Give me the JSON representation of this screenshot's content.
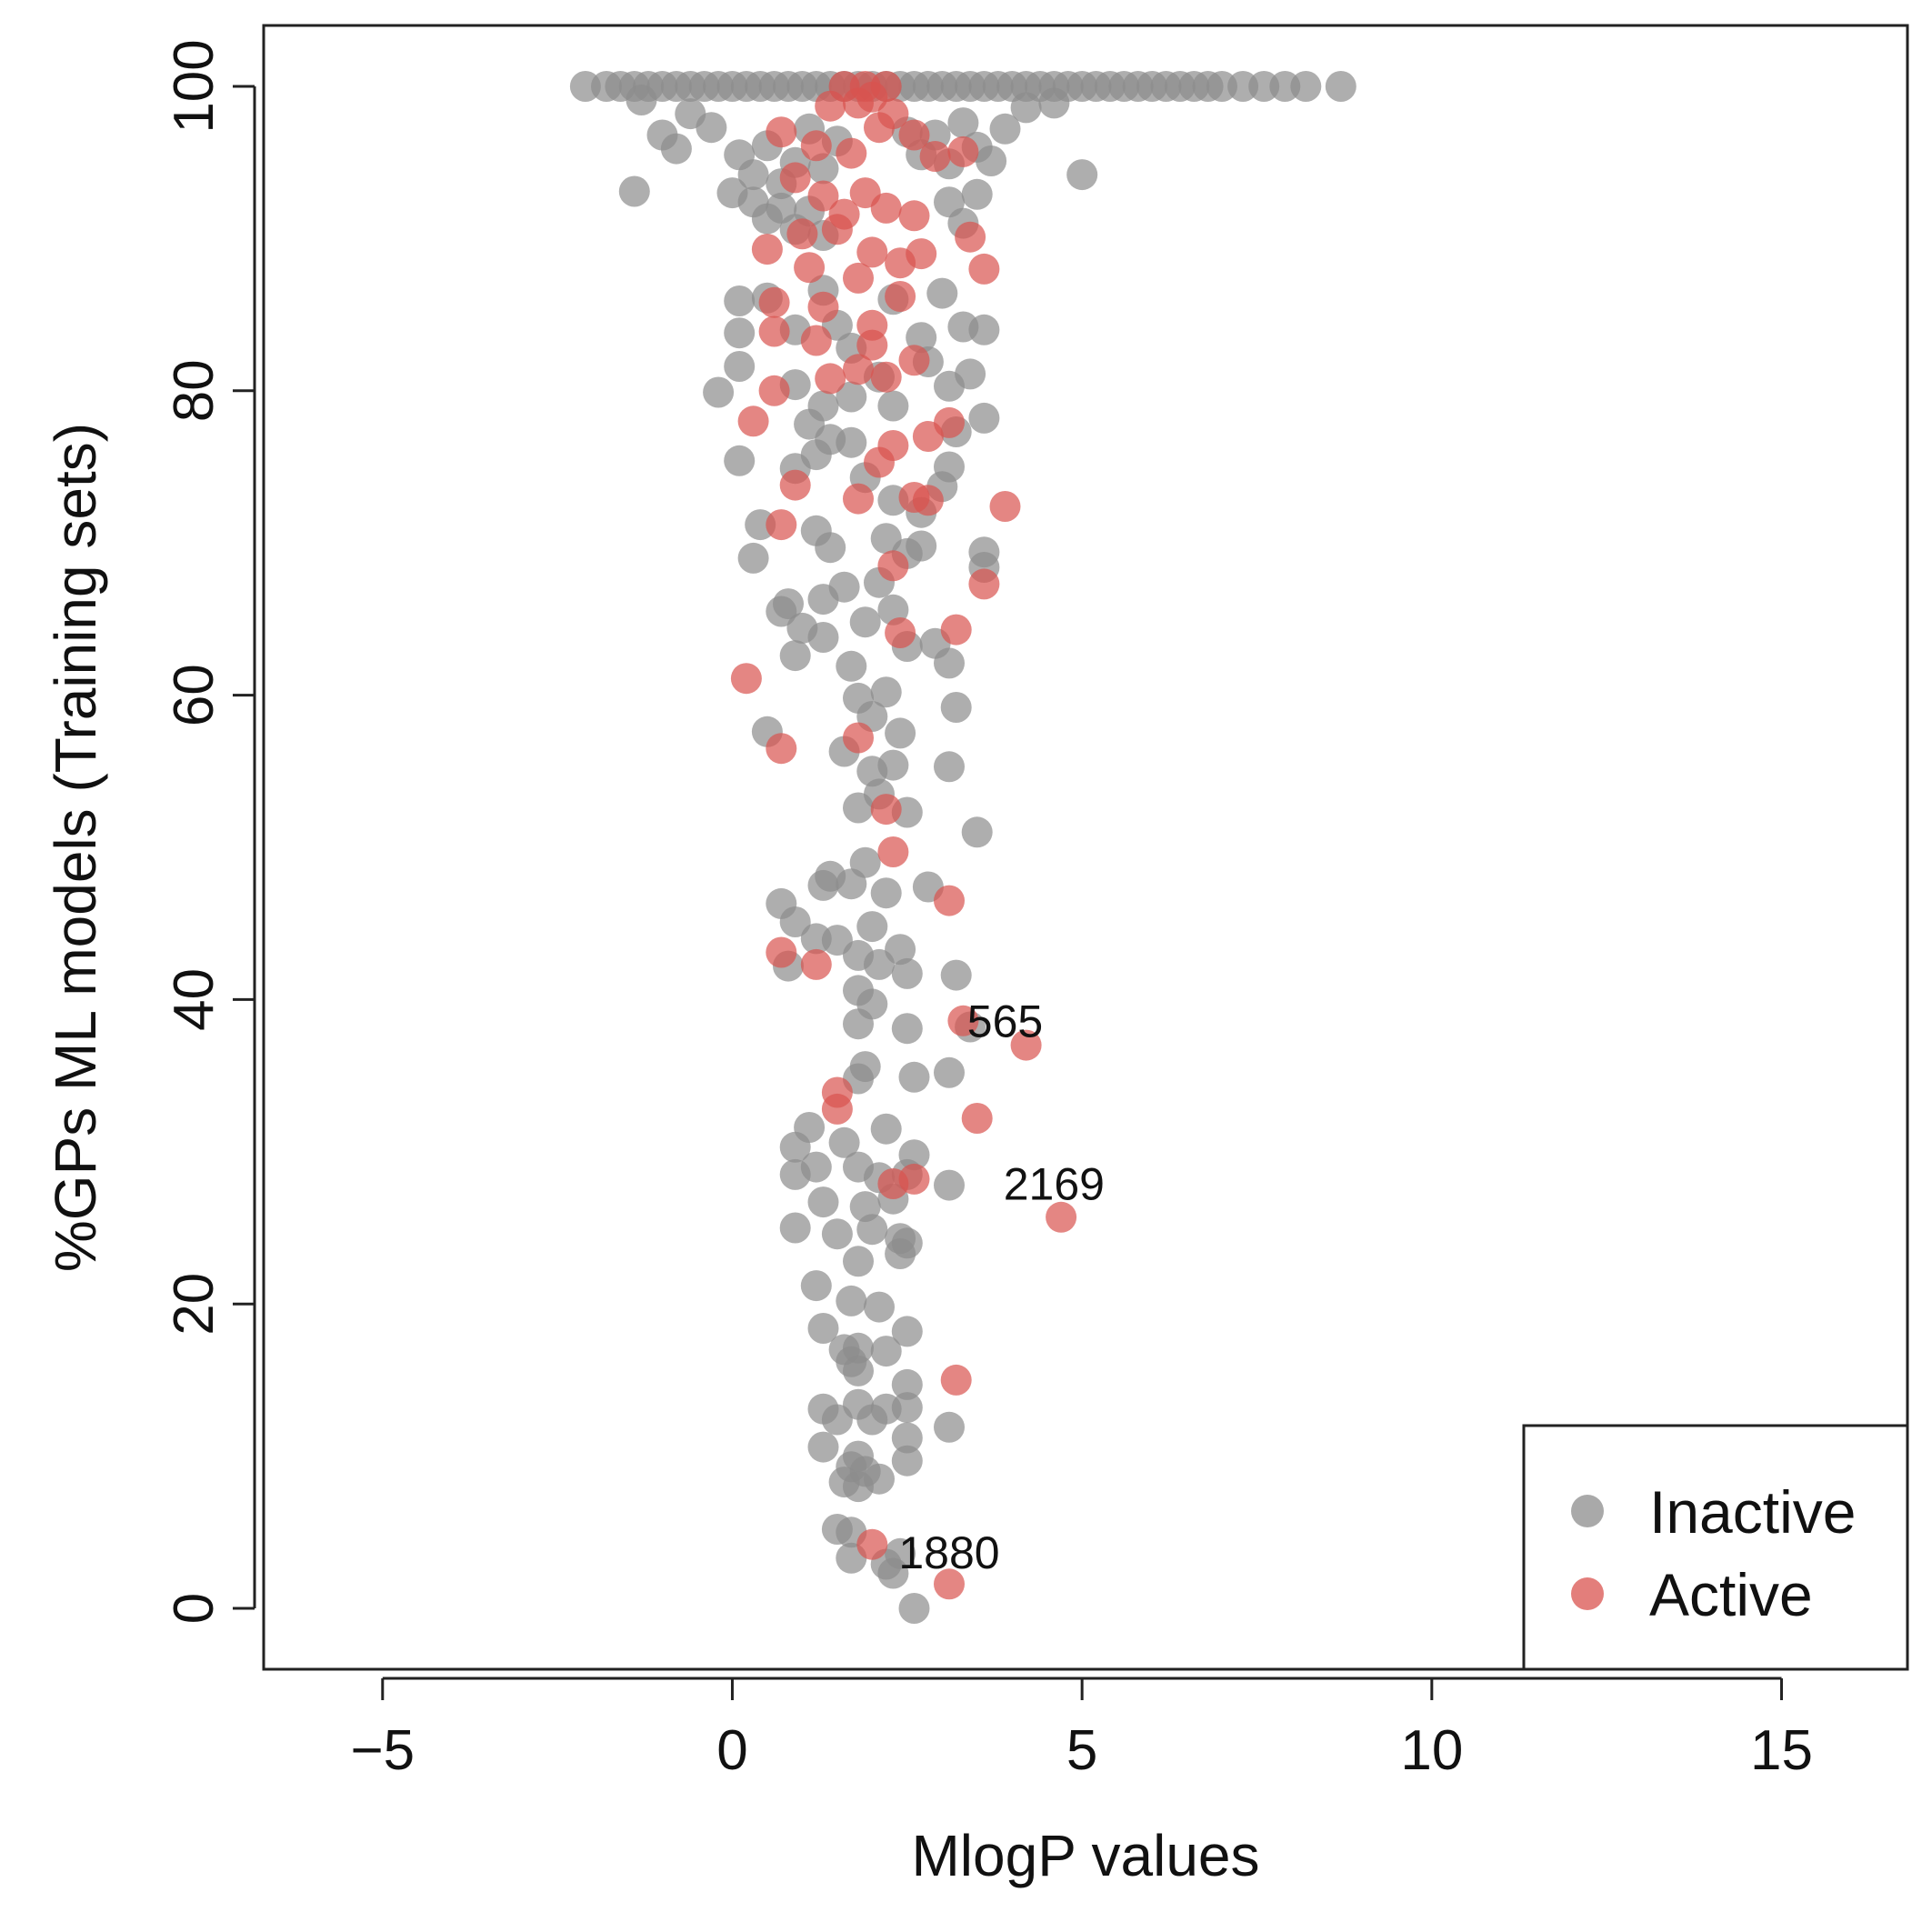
{
  "chart_data": {
    "type": "scatter",
    "title": "",
    "xlabel": "MlogP values",
    "ylabel": "%GPs ML models (Training sets)",
    "xlim": [
      -6.7,
      16.8
    ],
    "ylim": [
      -4,
      104
    ],
    "x_ticks": [
      -5,
      0,
      5,
      10,
      15
    ],
    "x_tick_labels": [
      "−5",
      "0",
      "5",
      "10",
      "15"
    ],
    "y_ticks": [
      0,
      20,
      40,
      60,
      80,
      100
    ],
    "y_tick_labels": [
      "0",
      "20",
      "40",
      "60",
      "80",
      "100"
    ],
    "grid": false,
    "legend_position": "bottom-right",
    "series": [
      {
        "name": "Inactive",
        "color": "#8c8c8c",
        "points": [
          [
            -2.1,
            100
          ],
          [
            -1.8,
            100
          ],
          [
            -1.6,
            100
          ],
          [
            -1.4,
            100
          ],
          [
            -1.2,
            100
          ],
          [
            -1.0,
            100
          ],
          [
            -0.8,
            100
          ],
          [
            -0.6,
            100
          ],
          [
            -0.4,
            100
          ],
          [
            -0.2,
            100
          ],
          [
            0.0,
            100
          ],
          [
            0.2,
            100
          ],
          [
            0.4,
            100
          ],
          [
            0.6,
            100
          ],
          [
            0.8,
            100
          ],
          [
            1.0,
            100
          ],
          [
            1.2,
            100
          ],
          [
            1.4,
            100
          ],
          [
            1.6,
            100
          ],
          [
            1.8,
            100
          ],
          [
            2.0,
            100
          ],
          [
            2.2,
            100
          ],
          [
            2.4,
            100
          ],
          [
            2.6,
            100
          ],
          [
            2.8,
            100
          ],
          [
            3.0,
            100
          ],
          [
            3.2,
            100
          ],
          [
            3.4,
            100
          ],
          [
            3.6,
            100
          ],
          [
            3.8,
            100
          ],
          [
            4.0,
            100
          ],
          [
            4.2,
            100
          ],
          [
            4.4,
            100
          ],
          [
            4.6,
            100
          ],
          [
            4.8,
            100
          ],
          [
            5.0,
            100
          ],
          [
            5.2,
            100
          ],
          [
            5.4,
            100
          ],
          [
            5.6,
            100
          ],
          [
            5.8,
            100
          ],
          [
            6.0,
            100
          ],
          [
            6.2,
            100
          ],
          [
            6.4,
            100
          ],
          [
            6.6,
            100
          ],
          [
            6.8,
            100
          ],
          [
            7.0,
            100
          ],
          [
            7.3,
            100
          ],
          [
            7.6,
            100
          ],
          [
            7.9,
            100
          ],
          [
            8.2,
            100
          ],
          [
            8.7,
            100
          ],
          [
            -1.3,
            99.1
          ],
          [
            -1.0,
            96.8
          ],
          [
            -0.8,
            95.9
          ],
          [
            -0.6,
            98.2
          ],
          [
            -0.3,
            97.3
          ],
          [
            0.1,
            95.5
          ],
          [
            0.3,
            94.2
          ],
          [
            0.5,
            96.1
          ],
          [
            0.7,
            93.6
          ],
          [
            0.9,
            95.0
          ],
          [
            1.1,
            97.2
          ],
          [
            1.3,
            94.6
          ],
          [
            1.5,
            96.4
          ],
          [
            2.5,
            97.0
          ],
          [
            2.7,
            95.5
          ],
          [
            2.9,
            96.8
          ],
          [
            3.1,
            94.9
          ],
          [
            3.3,
            97.6
          ],
          [
            3.5,
            96.0
          ],
          [
            3.7,
            95.1
          ],
          [
            3.9,
            97.2
          ],
          [
            4.2,
            98.6
          ],
          [
            4.6,
            98.9
          ],
          [
            -1.4,
            93.1
          ],
          [
            0.0,
            93.0
          ],
          [
            0.3,
            92.4
          ],
          [
            0.5,
            91.3
          ],
          [
            0.7,
            92.0
          ],
          [
            0.9,
            90.6
          ],
          [
            1.1,
            91.8
          ],
          [
            1.3,
            90.2
          ],
          [
            3.1,
            92.4
          ],
          [
            3.3,
            91.0
          ],
          [
            3.5,
            92.9
          ],
          [
            5.0,
            94.2
          ],
          [
            0.1,
            85.9
          ],
          [
            0.1,
            83.8
          ],
          [
            0.5,
            86.1
          ],
          [
            0.9,
            84.0
          ],
          [
            1.3,
            86.6
          ],
          [
            1.5,
            84.3
          ],
          [
            1.7,
            82.8
          ],
          [
            2.3,
            86.0
          ],
          [
            2.7,
            83.5
          ],
          [
            3.0,
            86.4
          ],
          [
            3.3,
            84.2
          ],
          [
            3.6,
            84.0
          ],
          [
            0.1,
            81.6
          ],
          [
            -0.2,
            79.9
          ],
          [
            0.9,
            80.4
          ],
          [
            1.3,
            79.0
          ],
          [
            1.1,
            77.8
          ],
          [
            1.7,
            79.6
          ],
          [
            2.1,
            80.9
          ],
          [
            2.3,
            79.0
          ],
          [
            2.8,
            81.9
          ],
          [
            3.1,
            80.3
          ],
          [
            3.4,
            81.1
          ],
          [
            3.6,
            78.2
          ],
          [
            0.1,
            75.4
          ],
          [
            0.9,
            74.9
          ],
          [
            1.2,
            75.8
          ],
          [
            1.4,
            76.8
          ],
          [
            1.7,
            76.6
          ],
          [
            1.9,
            74.3
          ],
          [
            2.3,
            72.8
          ],
          [
            2.7,
            72.0
          ],
          [
            3.0,
            73.7
          ],
          [
            3.1,
            75.0
          ],
          [
            3.2,
            77.3
          ],
          [
            0.4,
            71.2
          ],
          [
            0.3,
            69.0
          ],
          [
            1.2,
            70.8
          ],
          [
            1.4,
            69.7
          ],
          [
            2.2,
            70.3
          ],
          [
            2.5,
            69.3
          ],
          [
            2.7,
            69.8
          ],
          [
            3.6,
            69.4
          ],
          [
            3.6,
            68.4
          ],
          [
            0.8,
            66.0
          ],
          [
            0.7,
            65.5
          ],
          [
            1.0,
            64.4
          ],
          [
            1.3,
            66.3
          ],
          [
            1.6,
            67.1
          ],
          [
            1.9,
            64.8
          ],
          [
            2.1,
            67.4
          ],
          [
            2.3,
            65.6
          ],
          [
            2.5,
            63.2
          ],
          [
            2.9,
            63.4
          ],
          [
            3.1,
            62.1
          ],
          [
            0.5,
            57.6
          ],
          [
            0.9,
            62.6
          ],
          [
            1.3,
            63.8
          ],
          [
            1.7,
            61.9
          ],
          [
            1.8,
            59.8
          ],
          [
            2.0,
            58.6
          ],
          [
            2.2,
            60.2
          ],
          [
            2.4,
            57.5
          ],
          [
            2.0,
            55.0
          ],
          [
            2.3,
            55.4
          ],
          [
            1.6,
            56.3
          ],
          [
            3.1,
            55.3
          ],
          [
            3.2,
            59.2
          ],
          [
            1.8,
            52.6
          ],
          [
            2.1,
            53.5
          ],
          [
            2.5,
            52.3
          ],
          [
            3.5,
            51.0
          ],
          [
            1.4,
            48.1
          ],
          [
            1.3,
            47.5
          ],
          [
            1.9,
            49.0
          ],
          [
            1.7,
            47.6
          ],
          [
            2.2,
            47.0
          ],
          [
            2.8,
            47.4
          ],
          [
            0.7,
            46.3
          ],
          [
            0.9,
            45.1
          ],
          [
            1.2,
            44.0
          ],
          [
            1.5,
            43.9
          ],
          [
            1.8,
            42.9
          ],
          [
            2.0,
            44.8
          ],
          [
            2.1,
            42.3
          ],
          [
            2.4,
            43.3
          ],
          [
            0.8,
            42.2
          ],
          [
            1.8,
            40.6
          ],
          [
            2.0,
            39.7
          ],
          [
            2.5,
            41.7
          ],
          [
            3.2,
            41.6
          ],
          [
            1.8,
            38.4
          ],
          [
            2.5,
            38.1
          ],
          [
            3.4,
            38.2
          ],
          [
            1.9,
            35.6
          ],
          [
            1.8,
            34.8
          ],
          [
            2.6,
            34.9
          ],
          [
            3.1,
            35.2
          ],
          [
            1.1,
            31.6
          ],
          [
            0.9,
            30.3
          ],
          [
            1.2,
            29.0
          ],
          [
            1.6,
            30.6
          ],
          [
            2.2,
            31.5
          ],
          [
            2.6,
            29.8
          ],
          [
            0.9,
            28.5
          ],
          [
            1.8,
            29.0
          ],
          [
            2.1,
            28.3
          ],
          [
            2.5,
            28.5
          ],
          [
            3.1,
            27.8
          ],
          [
            1.3,
            26.7
          ],
          [
            1.9,
            26.4
          ],
          [
            2.3,
            26.9
          ],
          [
            0.9,
            25.0
          ],
          [
            1.5,
            24.6
          ],
          [
            2.0,
            24.9
          ],
          [
            2.4,
            24.3
          ],
          [
            2.5,
            24.0
          ],
          [
            2.4,
            23.3
          ],
          [
            1.8,
            22.8
          ],
          [
            1.2,
            21.2
          ],
          [
            1.7,
            20.2
          ],
          [
            2.1,
            19.8
          ],
          [
            1.3,
            18.4
          ],
          [
            1.6,
            17.0
          ],
          [
            1.8,
            17.1
          ],
          [
            2.2,
            16.9
          ],
          [
            2.5,
            18.2
          ],
          [
            1.7,
            16.2
          ],
          [
            1.8,
            15.6
          ],
          [
            1.3,
            13.1
          ],
          [
            1.5,
            12.4
          ],
          [
            1.8,
            13.4
          ],
          [
            2.0,
            12.4
          ],
          [
            2.2,
            13.1
          ],
          [
            2.5,
            13.2
          ],
          [
            2.5,
            14.7
          ],
          [
            1.3,
            10.6
          ],
          [
            1.8,
            10.0
          ],
          [
            2.1,
            8.5
          ],
          [
            2.5,
            11.2
          ],
          [
            1.9,
            9.0
          ],
          [
            1.7,
            9.3
          ],
          [
            2.5,
            9.7
          ],
          [
            3.1,
            11.9
          ],
          [
            1.6,
            8.3
          ],
          [
            1.8,
            8.0
          ],
          [
            1.5,
            5.2
          ],
          [
            1.7,
            5.0
          ],
          [
            1.7,
            3.3
          ],
          [
            2.2,
            2.9
          ],
          [
            2.3,
            2.3
          ],
          [
            2.4,
            3.6
          ],
          [
            2.6,
            0.0
          ]
        ]
      },
      {
        "name": "Active",
        "color": "#d9534f",
        "points": [
          [
            1.6,
            100
          ],
          [
            1.9,
            100
          ],
          [
            2.2,
            100
          ],
          [
            1.4,
            98.7
          ],
          [
            1.8,
            98.9
          ],
          [
            2.0,
            99.3
          ],
          [
            2.3,
            98.2
          ],
          [
            0.7,
            97.0
          ],
          [
            1.2,
            96.1
          ],
          [
            1.7,
            95.6
          ],
          [
            2.1,
            97.3
          ],
          [
            2.6,
            96.8
          ],
          [
            2.9,
            95.4
          ],
          [
            3.3,
            95.7
          ],
          [
            0.9,
            94.0
          ],
          [
            1.3,
            92.8
          ],
          [
            1.6,
            91.6
          ],
          [
            1.9,
            93.0
          ],
          [
            2.2,
            92.0
          ],
          [
            2.6,
            91.5
          ],
          [
            1.0,
            90.3
          ],
          [
            1.5,
            90.6
          ],
          [
            2.0,
            89.1
          ],
          [
            2.4,
            88.4
          ],
          [
            2.7,
            89.0
          ],
          [
            3.4,
            90.1
          ],
          [
            0.5,
            89.3
          ],
          [
            1.1,
            88.1
          ],
          [
            1.8,
            87.4
          ],
          [
            3.6,
            88.0
          ],
          [
            1.3,
            85.5
          ],
          [
            2.0,
            84.3
          ],
          [
            2.4,
            86.2
          ],
          [
            0.6,
            85.8
          ],
          [
            0.6,
            83.9
          ],
          [
            1.2,
            83.3
          ],
          [
            2.0,
            83.0
          ],
          [
            2.6,
            82.0
          ],
          [
            1.4,
            80.8
          ],
          [
            1.8,
            81.4
          ],
          [
            2.2,
            80.9
          ],
          [
            0.6,
            80.0
          ],
          [
            0.3,
            78.0
          ],
          [
            2.3,
            76.4
          ],
          [
            2.8,
            77.0
          ],
          [
            2.1,
            75.3
          ],
          [
            3.1,
            77.9
          ],
          [
            0.9,
            73.8
          ],
          [
            1.8,
            72.9
          ],
          [
            2.6,
            73.0
          ],
          [
            2.8,
            72.8
          ],
          [
            3.9,
            72.4
          ],
          [
            0.7,
            71.2
          ],
          [
            2.3,
            68.5
          ],
          [
            3.6,
            67.3
          ],
          [
            2.4,
            64.1
          ],
          [
            3.2,
            64.3
          ],
          [
            0.2,
            61.1
          ],
          [
            0.7,
            56.5
          ],
          [
            1.8,
            57.2
          ],
          [
            2.2,
            52.5
          ],
          [
            2.3,
            49.7
          ],
          [
            3.1,
            46.5
          ],
          [
            0.7,
            43.1
          ],
          [
            1.2,
            42.3
          ],
          [
            3.3,
            38.6
          ],
          [
            4.2,
            37.0
          ],
          [
            1.5,
            33.9
          ],
          [
            1.5,
            32.8
          ],
          [
            3.5,
            32.2
          ],
          [
            2.3,
            27.9
          ],
          [
            2.6,
            28.2
          ],
          [
            4.7,
            25.7
          ],
          [
            3.2,
            15.0
          ],
          [
            2.0,
            4.2
          ],
          [
            3.1,
            1.6
          ]
        ]
      }
    ],
    "annotations": [
      {
        "text": "565",
        "x": 3.9,
        "y": 38.5
      },
      {
        "text": "2169",
        "x": 4.6,
        "y": 27.8
      },
      {
        "text": "1880",
        "x": 3.1,
        "y": 3.6
      }
    ]
  }
}
